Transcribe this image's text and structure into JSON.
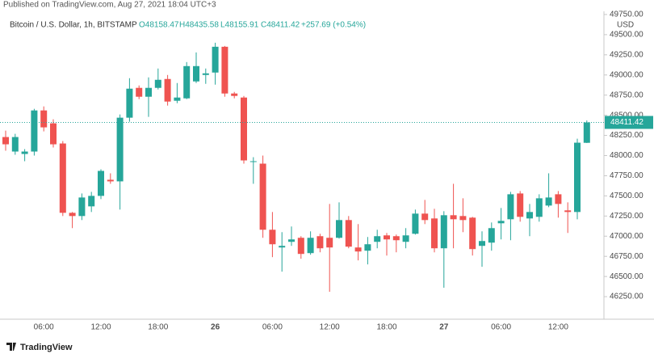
{
  "published": "Published on TradingView.com, Aug 27, 2021 18:04 UTC+3",
  "brand": "TradingView",
  "chart_data": {
    "type": "candlestick",
    "symbol": "Bitcoin / U.S. Dollar, 1h, BITSTAMP",
    "ohlc_header": {
      "open": "O48158.47",
      "high": "H48435.58",
      "low": "L48155.91",
      "close": "C48411.42",
      "change": "+257.69 (+0.54%)"
    },
    "currency": "USD",
    "up_color": "#26a69a",
    "down_color": "#ef5350",
    "grid": false,
    "categories": [
      null,
      null,
      null,
      null,
      "06:00",
      null,
      null,
      null,
      null,
      null,
      "12:00",
      null,
      null,
      null,
      null,
      null,
      "18:00",
      null,
      null,
      null,
      null,
      null,
      "26",
      null,
      null,
      null,
      null,
      null,
      "06:00",
      null,
      null,
      null,
      null,
      null,
      "12:00",
      null,
      null,
      null,
      null,
      null,
      "18:00",
      null,
      null,
      null,
      null,
      null,
      "27",
      null,
      null,
      null,
      null,
      null,
      "06:00",
      null,
      null,
      null,
      null,
      null,
      "12:00",
      null,
      null,
      null
    ],
    "open": [
      48230,
      48050,
      48020,
      48050,
      48560,
      48400,
      48150,
      47290,
      47250,
      47370,
      47500,
      47700,
      47680,
      48470,
      48840,
      48730,
      48840,
      48950,
      48680,
      48710,
      48920,
      49000,
      49030,
      49350,
      48770,
      48720,
      47920,
      47900,
      47080,
      46860,
      46930,
      46980,
      46790,
      47000,
      46980,
      46980,
      47200,
      46860,
      46820,
      46930,
      47010,
      47000,
      46930,
      47030,
      47280,
      47220,
      46850,
      47260,
      47250,
      47230,
      46880,
      46920,
      47160,
      47210,
      47530,
      47220,
      47240,
      47380,
      47520,
      47320,
      47300,
      48158.47
    ],
    "high": [
      48310,
      48270,
      48080,
      48580,
      48610,
      48450,
      48180,
      47300,
      47530,
      47550,
      47830,
      47780,
      48510,
      48960,
      48870,
      48970,
      49080,
      49000,
      48900,
      49160,
      49280,
      49080,
      49400,
      49360,
      48790,
      48740,
      47980,
      48000,
      47300,
      47050,
      47120,
      47000,
      47060,
      47030,
      47400,
      47420,
      47250,
      47150,
      46990,
      47080,
      47040,
      47020,
      47100,
      47330,
      47450,
      47340,
      47310,
      47650,
      47470,
      47240,
      47060,
      47170,
      47350,
      47550,
      47560,
      47400,
      47520,
      47780,
      47560,
      47420,
      48210,
      48435.58
    ],
    "low": [
      48060,
      48010,
      47930,
      48000,
      48300,
      48100,
      47250,
      47100,
      47200,
      47300,
      47460,
      47650,
      47330,
      48420,
      48700,
      48480,
      48820,
      48620,
      48650,
      48700,
      48900,
      48890,
      48880,
      48730,
      48710,
      47900,
      47650,
      46980,
      46740,
      46560,
      46880,
      46720,
      46770,
      46800,
      46310,
      46970,
      46850,
      46700,
      46650,
      46850,
      46760,
      46800,
      46850,
      47020,
      47150,
      46800,
      46360,
      46850,
      47050,
      46760,
      46620,
      46820,
      46960,
      46950,
      47180,
      47000,
      47180,
      47360,
      47230,
      47040,
      47210,
      48155.91
    ],
    "close": [
      48140,
      48230,
      48050,
      48560,
      48350,
      48140,
      47290,
      47250,
      47480,
      47500,
      47810,
      47680,
      48470,
      48830,
      48730,
      48840,
      48940,
      48670,
      48720,
      49110,
      49110,
      49020,
      49350,
      48770,
      48740,
      47940,
      47930,
      47080,
      46900,
      46880,
      46960,
      46780,
      46980,
      46850,
      46860,
      47200,
      46870,
      46810,
      46900,
      47000,
      46960,
      46950,
      47010,
      47280,
      47200,
      46850,
      47260,
      47210,
      47200,
      46840,
      46940,
      47100,
      47190,
      47520,
      47240,
      47300,
      47470,
      47480,
      47400,
      47300,
      48160,
      48411.42
    ],
    "ylim": [
      45970,
      49930
    ],
    "yticks": [
      {
        "value": 46250,
        "label": "46250.00"
      },
      {
        "value": 46500,
        "label": "46500.00"
      },
      {
        "value": 46750,
        "label": "46750.00"
      },
      {
        "value": 47000,
        "label": "47000.00"
      },
      {
        "value": 47250,
        "label": "47250.00"
      },
      {
        "value": 47500,
        "label": "47500.00"
      },
      {
        "value": 47750,
        "label": "47750.00"
      },
      {
        "value": 48000,
        "label": "48000.00"
      },
      {
        "value": 48250,
        "label": "48250.00"
      },
      {
        "value": 48500,
        "label": "48500.00"
      },
      {
        "value": 48750,
        "label": "48750.00"
      },
      {
        "value": 49000,
        "label": "49000.00"
      },
      {
        "value": 49250,
        "label": "49250.00"
      },
      {
        "value": 49500,
        "label": "49500.00"
      },
      {
        "value": 49750,
        "label": "49750.00"
      }
    ]
  }
}
